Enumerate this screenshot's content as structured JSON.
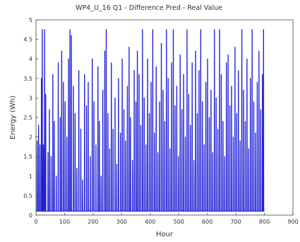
{
  "chart_data": {
    "type": "line",
    "title": "WP4_U_16 Q1 - Difference Pred - Real Value",
    "xlabel": "Hour",
    "ylabel": "Energy (Wh)",
    "xlim": [
      0,
      900
    ],
    "ylim": [
      0,
      5
    ],
    "x_ticks": [
      "0",
      "100",
      "200",
      "300",
      "400",
      "500",
      "600",
      "700",
      "800",
      "900"
    ],
    "y_ticks": [
      "0",
      "0.5",
      "1",
      "1.5",
      "2",
      "2.5",
      "3",
      "3.5",
      "4",
      "4.5",
      "5"
    ],
    "grid": false,
    "legend": "none",
    "series": [
      {
        "color": "#1f1fd6",
        "baseline": 0.1,
        "x_end": 800,
        "spikes": [
          [
            4,
            1.9
          ],
          [
            9,
            2.3
          ],
          [
            14,
            1.8
          ],
          [
            19,
            3.5
          ],
          [
            22,
            4.75
          ],
          [
            26,
            1.8
          ],
          [
            30,
            4.75
          ],
          [
            34,
            3.1
          ],
          [
            42,
            1.6
          ],
          [
            47,
            2.7
          ],
          [
            53,
            1.5
          ],
          [
            59,
            3.6
          ],
          [
            64,
            2.4
          ],
          [
            71,
            1.0
          ],
          [
            78,
            3.9
          ],
          [
            85,
            2.5
          ],
          [
            90,
            4.2
          ],
          [
            96,
            3.4
          ],
          [
            102,
            2.9
          ],
          [
            108,
            2.0
          ],
          [
            114,
            4.0
          ],
          [
            119,
            4.75
          ],
          [
            124,
            4.6
          ],
          [
            131,
            3.3
          ],
          [
            137,
            2.6
          ],
          [
            143,
            1.2
          ],
          [
            150,
            3.7
          ],
          [
            157,
            2.2
          ],
          [
            163,
            0.9
          ],
          [
            170,
            3.6
          ],
          [
            177,
            2.8
          ],
          [
            183,
            3.4
          ],
          [
            190,
            1.5
          ],
          [
            197,
            4.0
          ],
          [
            203,
            2.9
          ],
          [
            210,
            1.8
          ],
          [
            217,
            3.8
          ],
          [
            222,
            2.4
          ],
          [
            228,
            1.0
          ],
          [
            234,
            3.2
          ],
          [
            241,
            4.2
          ],
          [
            246,
            4.75
          ],
          [
            252,
            2.6
          ],
          [
            258,
            1.7
          ],
          [
            264,
            3.9
          ],
          [
            270,
            2.2
          ],
          [
            277,
            3.0
          ],
          [
            283,
            1.3
          ],
          [
            289,
            3.5
          ],
          [
            296,
            2.1
          ],
          [
            302,
            4.0
          ],
          [
            308,
            2.7
          ],
          [
            314,
            1.9
          ],
          [
            320,
            3.3
          ],
          [
            326,
            4.3
          ],
          [
            331,
            2.5
          ],
          [
            338,
            1.4
          ],
          [
            344,
            3.7
          ],
          [
            350,
            2.9
          ],
          [
            355,
            4.2
          ],
          [
            361,
            3.6
          ],
          [
            367,
            2.3
          ],
          [
            373,
            4.75
          ],
          [
            379,
            3.0
          ],
          [
            385,
            1.8
          ],
          [
            391,
            4.0
          ],
          [
            397,
            2.6
          ],
          [
            403,
            3.4
          ],
          [
            409,
            4.75
          ],
          [
            415,
            2.1
          ],
          [
            421,
            3.8
          ],
          [
            427,
            1.6
          ],
          [
            433,
            2.9
          ],
          [
            439,
            4.4
          ],
          [
            445,
            3.2
          ],
          [
            451,
            2.4
          ],
          [
            457,
            4.75
          ],
          [
            463,
            3.5
          ],
          [
            469,
            1.7
          ],
          [
            475,
            3.9
          ],
          [
            481,
            4.75
          ],
          [
            487,
            2.8
          ],
          [
            493,
            3.3
          ],
          [
            499,
            1.5
          ],
          [
            505,
            4.1
          ],
          [
            511,
            2.7
          ],
          [
            517,
            3.6
          ],
          [
            523,
            2.0
          ],
          [
            529,
            4.75
          ],
          [
            535,
            3.1
          ],
          [
            541,
            2.3
          ],
          [
            547,
            3.9
          ],
          [
            553,
            1.4
          ],
          [
            559,
            4.2
          ],
          [
            565,
            2.6
          ],
          [
            571,
            3.7
          ],
          [
            577,
            4.75
          ],
          [
            583,
            2.9
          ],
          [
            589,
            1.8
          ],
          [
            595,
            3.4
          ],
          [
            601,
            4.0
          ],
          [
            607,
            2.5
          ],
          [
            613,
            3.2
          ],
          [
            619,
            1.6
          ],
          [
            625,
            4.75
          ],
          [
            631,
            3.0
          ],
          [
            637,
            2.2
          ],
          [
            643,
            4.75
          ],
          [
            649,
            3.6
          ],
          [
            655,
            2.4
          ],
          [
            661,
            1.5
          ],
          [
            667,
            3.9
          ],
          [
            673,
            4.1
          ],
          [
            679,
            2.8
          ],
          [
            685,
            3.3
          ],
          [
            691,
            2.0
          ],
          [
            697,
            4.3
          ],
          [
            703,
            2.6
          ],
          [
            709,
            3.7
          ],
          [
            715,
            1.9
          ],
          [
            721,
            4.75
          ],
          [
            727,
            3.2
          ],
          [
            733,
            2.4
          ],
          [
            739,
            4.0
          ],
          [
            745,
            1.7
          ],
          [
            751,
            3.5
          ],
          [
            757,
            4.75
          ],
          [
            763,
            2.9
          ],
          [
            769,
            2.1
          ],
          [
            775,
            3.4
          ],
          [
            781,
            4.2
          ],
          [
            787,
            2.7
          ],
          [
            793,
            3.6
          ],
          [
            797,
            4.75
          ]
        ]
      }
    ]
  }
}
